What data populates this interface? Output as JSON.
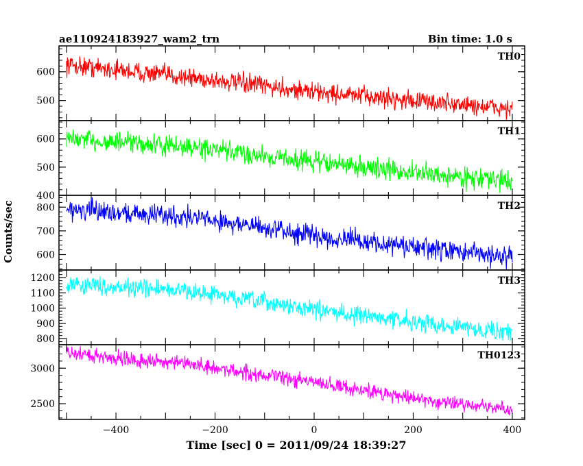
{
  "header": {
    "title": "ae110924183927_wam2_trn",
    "bin_time": "Bin time: 1.0 s"
  },
  "axes": {
    "xlabel": "Time [sec] 0 = 2011/09/24 18:39:27",
    "ylabel": "Counts/sec",
    "xlim": [
      -515,
      425
    ],
    "x_ticks": [
      -400,
      -200,
      0,
      200,
      400
    ]
  },
  "chart_data": [
    {
      "type": "line",
      "name": "TH0",
      "color": "#ff0000",
      "ylim": [
        430,
        690
      ],
      "y_ticks": [
        500,
        600
      ],
      "trend": {
        "x": [
          -500,
          -250,
          0,
          200,
          400
        ],
        "y": [
          625,
          580,
          530,
          500,
          470
        ]
      },
      "noise_amplitude": 35
    },
    {
      "type": "line",
      "name": "TH1",
      "color": "#00ff00",
      "ylim": [
        400,
        665
      ],
      "y_ticks": [
        400,
        500,
        600
      ],
      "trend": {
        "x": [
          -500,
          -250,
          0,
          200,
          400
        ],
        "y": [
          600,
          570,
          520,
          480,
          450
        ]
      },
      "noise_amplitude": 38
    },
    {
      "type": "line",
      "name": "TH2",
      "color": "#0000ff",
      "ylim": [
        535,
        850
      ],
      "y_ticks": [
        600,
        700,
        800
      ],
      "trend": {
        "x": [
          -500,
          -250,
          0,
          200,
          400
        ],
        "y": [
          790,
          760,
          680,
          630,
          590
        ]
      },
      "noise_amplitude": 45
    },
    {
      "type": "line",
      "name": "TH3",
      "color": "#00ffff",
      "ylim": [
        760,
        1250
      ],
      "y_ticks": [
        800,
        900,
        1000,
        1100,
        1200
      ],
      "trend": {
        "x": [
          -500,
          -250,
          0,
          200,
          400
        ],
        "y": [
          1160,
          1110,
          990,
          910,
          840
        ]
      },
      "noise_amplitude": 60
    },
    {
      "type": "line",
      "name": "TH0123",
      "color": "#ff00ff",
      "ylim": [
        2280,
        3330
      ],
      "y_ticks": [
        2500,
        3000
      ],
      "trend": {
        "x": [
          -500,
          -250,
          0,
          200,
          400
        ],
        "y": [
          3210,
          3050,
          2800,
          2580,
          2410
        ]
      },
      "noise_amplitude": 110
    }
  ]
}
